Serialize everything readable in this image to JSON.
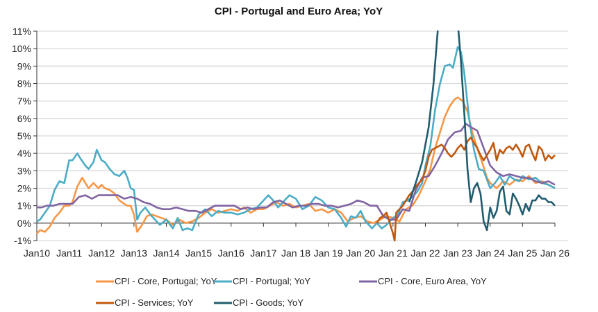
{
  "chart_data": {
    "type": "line",
    "title": "CPI - Portugal and Euro Area; YoY",
    "xlabel": "",
    "ylabel": "",
    "ylim": [
      -1,
      11
    ],
    "y_ticks": [
      "-1%",
      "0%",
      "1%",
      "2%",
      "3%",
      "4%",
      "5%",
      "6%",
      "7%",
      "8%",
      "9%",
      "10%",
      "11%"
    ],
    "x_range": [
      2010.0,
      2026.0
    ],
    "x_ticks": [
      "Jan10",
      "Jan11",
      "Jan12",
      "Jan13",
      "Jan14",
      "Jan15",
      "Jan16",
      "Jan17",
      "Jan 18",
      "Jan 19",
      "Jan 20",
      "Jan 21",
      "Jan 22",
      "Jan 23",
      "Jan 24",
      "Jan 25",
      "Jan 26"
    ],
    "grid": "horizontal",
    "legend_position": "bottom",
    "series": [
      {
        "name": "CPI - Core, Portugal; YoY",
        "color": "#F79646",
        "x": [
          2010.0,
          2010.1,
          2010.25,
          2010.4,
          2010.55,
          2010.7,
          2010.85,
          2011.0,
          2011.1,
          2011.25,
          2011.4,
          2011.5,
          2011.6,
          2011.75,
          2011.9,
          2012.0,
          2012.1,
          2012.25,
          2012.4,
          2012.55,
          2012.7,
          2012.8,
          2012.9,
          2013.0,
          2013.1,
          2013.25,
          2013.4,
          2013.55,
          2013.7,
          2013.85,
          2014.0,
          2014.2,
          2014.4,
          2014.6,
          2014.8,
          2015.0,
          2015.2,
          2015.4,
          2015.6,
          2015.8,
          2016.0,
          2016.2,
          2016.4,
          2016.6,
          2016.8,
          2017.0,
          2017.2,
          2017.4,
          2017.6,
          2017.8,
          2018.0,
          2018.2,
          2018.4,
          2018.6,
          2018.8,
          2019.0,
          2019.2,
          2019.4,
          2019.6,
          2019.8,
          2020.0,
          2020.2,
          2020.4,
          2020.6,
          2020.8,
          2021.0,
          2021.2,
          2021.4,
          2021.6,
          2021.8,
          2022.0,
          2022.15,
          2022.3,
          2022.45,
          2022.6,
          2022.75,
          2022.9,
          2023.0,
          2023.15,
          2023.3,
          2023.45,
          2023.6,
          2023.75,
          2023.9,
          2024.0,
          2024.2,
          2024.4,
          2024.6,
          2024.8,
          2025.0,
          2025.2,
          2025.4,
          2025.6,
          2025.8,
          2026.0
        ],
        "values": [
          -0.6,
          -0.4,
          -0.5,
          -0.2,
          0.3,
          0.6,
          1.0,
          1.0,
          1.2,
          2.1,
          2.6,
          2.3,
          2.0,
          2.3,
          2.0,
          2.2,
          2.0,
          1.9,
          1.7,
          1.3,
          1.1,
          1.0,
          1.0,
          0.5,
          -0.5,
          -0.1,
          0.4,
          0.5,
          0.4,
          0.3,
          0.2,
          -0.1,
          0.2,
          0.0,
          0.1,
          0.3,
          0.6,
          0.8,
          0.6,
          0.7,
          0.8,
          0.7,
          0.9,
          0.6,
          0.8,
          0.8,
          1.0,
          1.2,
          1.0,
          1.1,
          0.9,
          1.0,
          1.1,
          0.7,
          0.8,
          0.6,
          0.8,
          0.6,
          0.1,
          0.3,
          0.4,
          0.1,
          0.0,
          0.2,
          0.4,
          0.3,
          0.1,
          0.8,
          1.0,
          1.6,
          2.4,
          3.1,
          4.3,
          5.2,
          6.1,
          6.7,
          7.1,
          7.2,
          7.0,
          6.4,
          5.2,
          4.3,
          3.5,
          2.6,
          2.3,
          2.0,
          2.4,
          2.2,
          2.5,
          2.4,
          2.7,
          2.3,
          2.4,
          2.2,
          2.0
        ]
      },
      {
        "name": "CPI - Portugal; YoY",
        "color": "#4BACC6",
        "x": [
          2010.0,
          2010.1,
          2010.25,
          2010.4,
          2010.55,
          2010.7,
          2010.85,
          2011.0,
          2011.1,
          2011.25,
          2011.35,
          2011.5,
          2011.6,
          2011.75,
          2011.85,
          2012.0,
          2012.1,
          2012.25,
          2012.4,
          2012.55,
          2012.7,
          2012.8,
          2012.9,
          2013.0,
          2013.1,
          2013.2,
          2013.35,
          2013.5,
          2013.65,
          2013.8,
          2014.0,
          2014.2,
          2014.35,
          2014.5,
          2014.65,
          2014.8,
          2015.0,
          2015.2,
          2015.4,
          2015.6,
          2015.8,
          2016.0,
          2016.2,
          2016.4,
          2016.6,
          2016.8,
          2017.0,
          2017.15,
          2017.3,
          2017.45,
          2017.6,
          2017.8,
          2018.0,
          2018.2,
          2018.4,
          2018.6,
          2018.8,
          2019.0,
          2019.2,
          2019.4,
          2019.55,
          2019.7,
          2019.85,
          2020.0,
          2020.15,
          2020.35,
          2020.5,
          2020.65,
          2020.8,
          2021.0,
          2021.15,
          2021.3,
          2021.45,
          2021.6,
          2021.75,
          2021.9,
          2022.0,
          2022.15,
          2022.3,
          2022.45,
          2022.6,
          2022.75,
          2022.85,
          2023.0,
          2023.1,
          2023.2,
          2023.35,
          2023.5,
          2023.65,
          2023.8,
          2024.0,
          2024.15,
          2024.3,
          2024.45,
          2024.6,
          2024.75,
          2024.9,
          2025.0,
          2025.2,
          2025.4,
          2025.6,
          2025.8,
          2026.0
        ],
        "values": [
          0.1,
          0.2,
          0.6,
          1.0,
          1.9,
          2.4,
          2.3,
          3.6,
          3.6,
          4.0,
          3.7,
          3.3,
          3.1,
          3.5,
          4.2,
          3.6,
          3.5,
          3.1,
          2.8,
          2.7,
          3.0,
          2.6,
          2.0,
          1.9,
          0.2,
          0.6,
          0.9,
          0.5,
          0.2,
          -0.1,
          0.2,
          -0.3,
          0.3,
          -0.4,
          -0.3,
          -0.4,
          0.5,
          0.8,
          0.4,
          0.7,
          0.6,
          0.6,
          0.5,
          0.6,
          0.8,
          0.9,
          1.3,
          1.6,
          1.3,
          0.9,
          1.2,
          1.6,
          1.4,
          0.8,
          1.0,
          1.5,
          1.3,
          0.9,
          0.8,
          0.3,
          -0.2,
          0.4,
          0.3,
          0.7,
          0.1,
          -0.3,
          0.0,
          -0.3,
          -0.1,
          0.3,
          0.5,
          1.2,
          1.3,
          1.5,
          1.8,
          2.3,
          3.3,
          4.4,
          6.5,
          8.0,
          9.0,
          9.1,
          8.9,
          10.1,
          9.8,
          8.6,
          6.0,
          4.2,
          3.1,
          3.0,
          2.0,
          2.3,
          2.7,
          2.2,
          2.7,
          2.5,
          2.4,
          2.7,
          2.5,
          2.6,
          2.3,
          2.2,
          2.0
        ]
      },
      {
        "name": "CPI - Core, Euro Area, YoY",
        "color": "#8064A2",
        "x": [
          2010.0,
          2010.15,
          2010.3,
          2010.5,
          2010.7,
          2010.9,
          2011.1,
          2011.3,
          2011.5,
          2011.7,
          2011.9,
          2012.1,
          2012.3,
          2012.5,
          2012.7,
          2012.9,
          2013.1,
          2013.3,
          2013.5,
          2013.7,
          2013.9,
          2014.1,
          2014.3,
          2014.5,
          2014.7,
          2014.9,
          2015.1,
          2015.3,
          2015.5,
          2015.7,
          2015.9,
          2016.1,
          2016.3,
          2016.5,
          2016.7,
          2016.9,
          2017.1,
          2017.3,
          2017.5,
          2017.7,
          2017.9,
          2018.1,
          2018.3,
          2018.5,
          2018.7,
          2018.9,
          2019.1,
          2019.3,
          2019.5,
          2019.7,
          2019.9,
          2020.1,
          2020.3,
          2020.5,
          2020.7,
          2020.9,
          2021.1,
          2021.3,
          2021.5,
          2021.7,
          2021.9,
          2022.1,
          2022.3,
          2022.5,
          2022.7,
          2022.9,
          2023.1,
          2023.25,
          2023.4,
          2023.6,
          2023.8,
          2024.0,
          2024.2,
          2024.4,
          2024.6,
          2024.8,
          2025.0,
          2025.2,
          2025.4,
          2025.6,
          2025.8,
          2026.0
        ],
        "values": [
          0.9,
          0.9,
          1.0,
          1.0,
          1.1,
          1.1,
          1.1,
          1.5,
          1.6,
          1.4,
          1.6,
          1.6,
          1.6,
          1.6,
          1.4,
          1.5,
          1.4,
          1.2,
          1.1,
          0.9,
          0.8,
          0.8,
          0.9,
          0.8,
          0.7,
          0.7,
          0.6,
          0.8,
          1.0,
          1.0,
          1.0,
          1.0,
          0.8,
          0.9,
          0.8,
          0.9,
          0.9,
          1.2,
          1.3,
          1.1,
          0.9,
          1.0,
          1.0,
          1.1,
          1.1,
          1.0,
          1.0,
          0.9,
          1.0,
          1.1,
          1.3,
          1.2,
          1.0,
          1.0,
          0.4,
          0.2,
          0.2,
          0.8,
          0.7,
          1.9,
          2.6,
          2.7,
          3.3,
          4.0,
          4.8,
          5.2,
          5.3,
          5.7,
          5.5,
          5.3,
          4.3,
          3.3,
          2.9,
          2.7,
          2.8,
          2.7,
          2.6,
          2.6,
          2.4,
          2.3,
          2.4,
          2.2
        ]
      },
      {
        "name": "CPI - Services; YoY",
        "color": "#C0580F",
        "x": [
          2020.5,
          2020.6,
          2020.7,
          2020.8,
          2020.9,
          2021.0,
          2021.05,
          2021.1,
          2021.2,
          2021.3,
          2021.4,
          2021.5,
          2021.6,
          2021.7,
          2021.8,
          2021.9,
          2022.0,
          2022.1,
          2022.2,
          2022.3,
          2022.4,
          2022.5,
          2022.6,
          2022.7,
          2022.8,
          2022.9,
          2023.0,
          2023.1,
          2023.2,
          2023.3,
          2023.4,
          2023.5,
          2023.6,
          2023.7,
          2023.8,
          2023.9,
          2024.0,
          2024.1,
          2024.2,
          2024.3,
          2024.4,
          2024.5,
          2024.6,
          2024.7,
          2024.8,
          2024.9,
          2025.0,
          2025.1,
          2025.2,
          2025.3,
          2025.4,
          2025.5,
          2025.6,
          2025.7,
          2025.8,
          2025.9,
          2026.0
        ],
        "values": [
          0.0,
          0.3,
          0.4,
          0.6,
          0.0,
          -0.6,
          -1.0,
          0.6,
          0.8,
          1.0,
          1.3,
          1.6,
          1.8,
          2.1,
          2.3,
          2.5,
          3.0,
          3.8,
          4.2,
          4.3,
          4.4,
          4.5,
          4.3,
          4.0,
          3.8,
          4.0,
          4.3,
          4.5,
          4.2,
          4.7,
          4.9,
          4.6,
          4.3,
          3.9,
          3.6,
          3.9,
          4.2,
          4.6,
          3.6,
          4.2,
          4.0,
          4.3,
          4.4,
          4.2,
          4.5,
          4.2,
          3.8,
          4.4,
          4.5,
          4.0,
          3.6,
          4.4,
          4.2,
          3.6,
          3.9,
          3.7,
          3.9
        ]
      },
      {
        "name": "CPI - Goods; YoY",
        "color": "#215C6E",
        "x": [
          2021.5,
          2021.7,
          2021.9,
          2022.1,
          2022.25,
          2022.4,
          2022.55,
          2022.7,
          2022.85,
          2023.0,
          2023.1,
          2023.2,
          2023.3,
          2023.4,
          2023.5,
          2023.6,
          2023.7,
          2023.8,
          2023.9,
          2024.0,
          2024.1,
          2024.2,
          2024.3,
          2024.4,
          2024.5,
          2024.6,
          2024.7,
          2024.8,
          2024.9,
          2025.0,
          2025.1,
          2025.2,
          2025.3,
          2025.4,
          2025.5,
          2025.6,
          2025.7,
          2025.8,
          2025.9,
          2026.0
        ],
        "values": [
          1.2,
          2.3,
          3.5,
          5.5,
          8.0,
          11.5,
          13.0,
          13.0,
          12.5,
          11.5,
          9.2,
          6.3,
          3.1,
          1.2,
          2.0,
          2.3,
          1.7,
          0.1,
          -0.4,
          0.9,
          0.3,
          0.7,
          1.8,
          2.1,
          0.7,
          0.5,
          1.7,
          1.4,
          1.0,
          0.5,
          1.1,
          0.7,
          1.3,
          1.3,
          1.6,
          1.4,
          1.4,
          1.2,
          1.2,
          1.0
        ]
      }
    ]
  }
}
